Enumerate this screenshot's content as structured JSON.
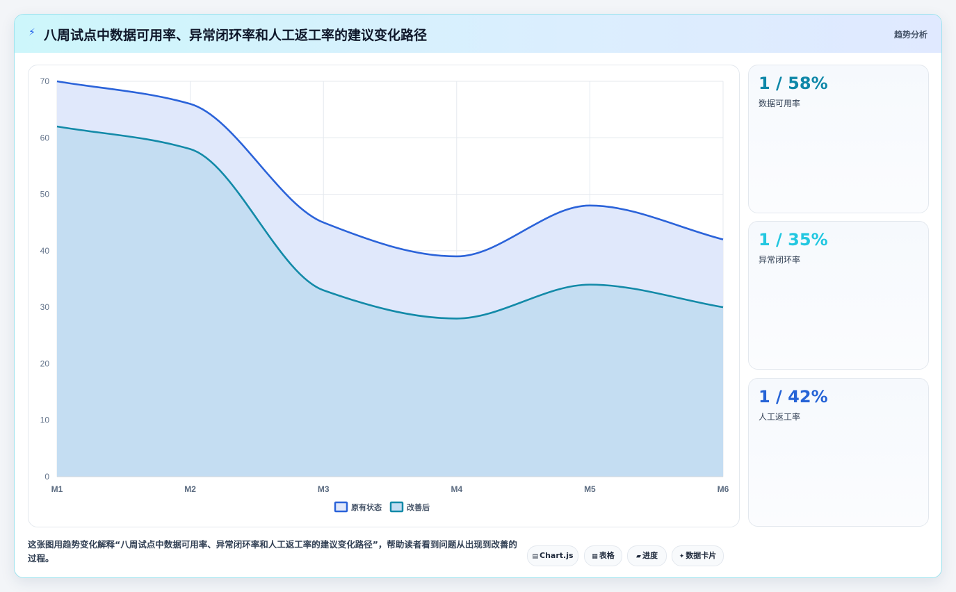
{
  "header": {
    "icon": "bolt-icon",
    "title": "八周试点中数据可用率、异常闭环率和人工返工率的建议变化路径",
    "tag": "趋势分析"
  },
  "cards": [
    {
      "value": "1 / 58%",
      "label": "数据可用率",
      "color": "#0e87a8"
    },
    {
      "value": "1 / 35%",
      "label": "异常闭环率",
      "color": "#22c7e0"
    },
    {
      "value": "1 / 42%",
      "label": "人工返工率",
      "color": "#2563d6"
    }
  ],
  "footer": {
    "text": "这张图用趋势变化解释“八周试点中数据可用率、异常闭环率和人工返工率的建议变化路径”，帮助读者看到问题从出现到改善的过程。",
    "chips": [
      {
        "icon": "▤",
        "label": "Chart.js"
      },
      {
        "icon": "▦",
        "label": "表格"
      },
      {
        "icon": "▰",
        "label": "进度"
      },
      {
        "icon": "✦",
        "label": "数据卡片"
      }
    ]
  },
  "chart_data": {
    "type": "area",
    "categories": [
      "M1",
      "M2",
      "M3",
      "M4",
      "M5",
      "M6"
    ],
    "series": [
      {
        "name": "原有状态",
        "values": [
          70,
          66,
          45,
          39,
          48,
          42
        ],
        "color": "#2b63d9",
        "fill": "#e0e8fb"
      },
      {
        "name": "改善后",
        "values": [
          62,
          58,
          33,
          28,
          34,
          30
        ],
        "color": "#138aa8",
        "fill": "#c4ddf2"
      }
    ],
    "ylim": [
      0,
      70
    ],
    "yticks": [
      0,
      10,
      20,
      30,
      40,
      50,
      60,
      70
    ],
    "grid": true,
    "legend": "bottom"
  }
}
